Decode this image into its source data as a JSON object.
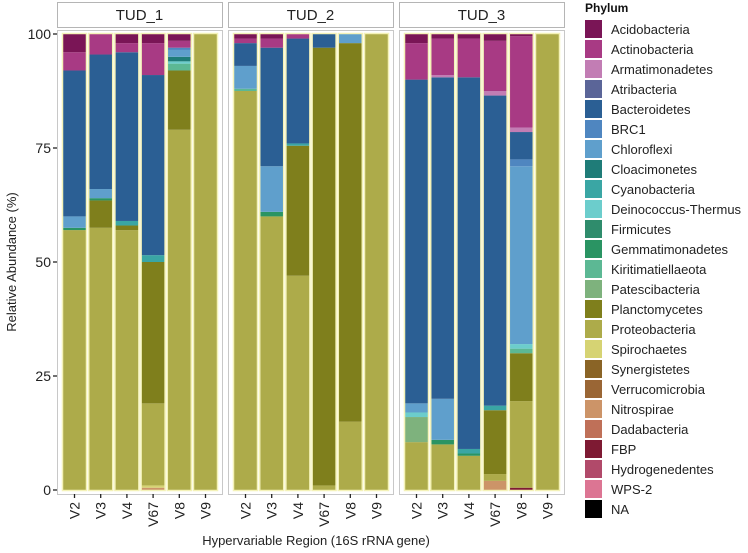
{
  "chart_data": {
    "type": "bar",
    "stacked": true,
    "title": "",
    "xlabel": "Hypervariable Region (16S rRNA gene)",
    "ylabel": "Relative Abundance (%)",
    "ylim": [
      0,
      100
    ],
    "yticks": [
      "0",
      "25",
      "50",
      "75",
      "100"
    ],
    "ytick_values": [
      0,
      25,
      50,
      75,
      100
    ],
    "grid": false,
    "legend_title": "Phylum",
    "legend_position": "right",
    "categories": [
      "V2",
      "V3",
      "V4",
      "V67",
      "V8",
      "V9"
    ],
    "phyla": [
      {
        "name": "Acidobacteria",
        "color": "#7a1556"
      },
      {
        "name": "Actinobacteria",
        "color": "#a83a84"
      },
      {
        "name": "Armatimonadetes",
        "color": "#c27db4"
      },
      {
        "name": "Atribacteria",
        "color": "#5b6598"
      },
      {
        "name": "Bacteroidetes",
        "color": "#2b5f94"
      },
      {
        "name": "BRC1",
        "color": "#4f86c0"
      },
      {
        "name": "Chloroflexi",
        "color": "#5f9fcc"
      },
      {
        "name": "Cloacimonetes",
        "color": "#1f7c78"
      },
      {
        "name": "Cyanobacteria",
        "color": "#3aa6a4"
      },
      {
        "name": "Deinococcus-Thermus",
        "color": "#6ccdcc"
      },
      {
        "name": "Firmicutes",
        "color": "#2f8c6c"
      },
      {
        "name": "Gemmatimonadetes",
        "color": "#2a9463"
      },
      {
        "name": "Kiritimatiellaeota",
        "color": "#5cb894"
      },
      {
        "name": "Patescibacteria",
        "color": "#7eb27d"
      },
      {
        "name": "Planctomycetes",
        "color": "#7f7f1c"
      },
      {
        "name": "Proteobacteria",
        "color": "#adab4a"
      },
      {
        "name": "Spirochaetes",
        "color": "#d6d373"
      },
      {
        "name": "Synergistetes",
        "color": "#8a6426"
      },
      {
        "name": "Verrucomicrobia",
        "color": "#9a6635"
      },
      {
        "name": "Nitrospirae",
        "color": "#cc9468"
      },
      {
        "name": "Dadabacteria",
        "color": "#bf7058"
      },
      {
        "name": "FBP",
        "color": "#7e1a33"
      },
      {
        "name": "Hydrogenedentes",
        "color": "#b14a6a"
      },
      {
        "name": "WPS-2",
        "color": "#dc7593"
      },
      {
        "name": "NA",
        "color": "#000000"
      }
    ],
    "facets": [
      {
        "label": "TUD_1",
        "bars": [
          {
            "category": "V2",
            "segments": [
              {
                "phylum": "Proteobacteria",
                "value": 57.0
              },
              {
                "phylum": "Gemmatimonadetes",
                "value": 0.5
              },
              {
                "phylum": "Chloroflexi",
                "value": 2.5
              },
              {
                "phylum": "Bacteroidetes",
                "value": 32.0
              },
              {
                "phylum": "Actinobacteria",
                "value": 4.0
              },
              {
                "phylum": "Acidobacteria",
                "value": 4.0
              }
            ]
          },
          {
            "category": "V3",
            "segments": [
              {
                "phylum": "Proteobacteria",
                "value": 57.5
              },
              {
                "phylum": "Planctomycetes",
                "value": 6.0
              },
              {
                "phylum": "Gemmatimonadetes",
                "value": 0.5
              },
              {
                "phylum": "Chloroflexi",
                "value": 2.0
              },
              {
                "phylum": "Bacteroidetes",
                "value": 29.5
              },
              {
                "phylum": "Actinobacteria",
                "value": 4.5
              }
            ]
          },
          {
            "category": "V4",
            "segments": [
              {
                "phylum": "Proteobacteria",
                "value": 57.0
              },
              {
                "phylum": "Planctomycetes",
                "value": 1.0
              },
              {
                "phylum": "Cyanobacteria",
                "value": 1.0
              },
              {
                "phylum": "Bacteroidetes",
                "value": 37.0
              },
              {
                "phylum": "Actinobacteria",
                "value": 2.0
              },
              {
                "phylum": "Acidobacteria",
                "value": 2.0
              }
            ]
          },
          {
            "category": "V67",
            "segments": [
              {
                "phylum": "Nitrospirae",
                "value": 0.5
              },
              {
                "phylum": "Spirochaetes",
                "value": 0.5
              },
              {
                "phylum": "Proteobacteria",
                "value": 18.0
              },
              {
                "phylum": "Planctomycetes",
                "value": 31.0
              },
              {
                "phylum": "Cyanobacteria",
                "value": 1.5
              },
              {
                "phylum": "Bacteroidetes",
                "value": 39.5
              },
              {
                "phylum": "Actinobacteria",
                "value": 7.0
              },
              {
                "phylum": "Acidobacteria",
                "value": 2.0
              }
            ]
          },
          {
            "category": "V8",
            "segments": [
              {
                "phylum": "Proteobacteria",
                "value": 79.0
              },
              {
                "phylum": "Planctomycetes",
                "value": 13.0
              },
              {
                "phylum": "Kiritimatiellaeota",
                "value": 1.5
              },
              {
                "phylum": "Deinococcus-Thermus",
                "value": 0.5
              },
              {
                "phylum": "Cloacimonetes",
                "value": 1.0
              },
              {
                "phylum": "Chloroflexi",
                "value": 1.5
              },
              {
                "phylum": "BRC1",
                "value": 0.5
              },
              {
                "phylum": "Actinobacteria",
                "value": 1.5
              },
              {
                "phylum": "Acidobacteria",
                "value": 1.5
              }
            ]
          },
          {
            "category": "V9",
            "segments": [
              {
                "phylum": "Proteobacteria",
                "value": 100.0
              }
            ]
          }
        ]
      },
      {
        "label": "TUD_2",
        "bars": [
          {
            "category": "V2",
            "segments": [
              {
                "phylum": "Proteobacteria",
                "value": 87.5
              },
              {
                "phylum": "Kiritimatiellaeota",
                "value": 0.5
              },
              {
                "phylum": "Chloroflexi",
                "value": 5.0
              },
              {
                "phylum": "Bacteroidetes",
                "value": 5.0
              },
              {
                "phylum": "Actinobacteria",
                "value": 1.0
              },
              {
                "phylum": "Acidobacteria",
                "value": 1.0
              }
            ]
          },
          {
            "category": "V3",
            "segments": [
              {
                "phylum": "Proteobacteria",
                "value": 60.0
              },
              {
                "phylum": "Gemmatimonadetes",
                "value": 1.0
              },
              {
                "phylum": "Chloroflexi",
                "value": 10.0
              },
              {
                "phylum": "Bacteroidetes",
                "value": 26.0
              },
              {
                "phylum": "Actinobacteria",
                "value": 2.0
              },
              {
                "phylum": "Acidobacteria",
                "value": 1.0
              }
            ]
          },
          {
            "category": "V4",
            "segments": [
              {
                "phylum": "Proteobacteria",
                "value": 47.0
              },
              {
                "phylum": "Planctomycetes",
                "value": 28.5
              },
              {
                "phylum": "Cyanobacteria",
                "value": 0.5
              },
              {
                "phylum": "Bacteroidetes",
                "value": 23.0
              },
              {
                "phylum": "Actinobacteria",
                "value": 1.0
              }
            ]
          },
          {
            "category": "V67",
            "segments": [
              {
                "phylum": "Proteobacteria",
                "value": 1.0
              },
              {
                "phylum": "Planctomycetes",
                "value": 96.0
              },
              {
                "phylum": "Bacteroidetes",
                "value": 3.0
              }
            ]
          },
          {
            "category": "V8",
            "segments": [
              {
                "phylum": "Proteobacteria",
                "value": 15.0
              },
              {
                "phylum": "Planctomycetes",
                "value": 83.0
              },
              {
                "phylum": "Chloroflexi",
                "value": 2.0
              }
            ]
          },
          {
            "category": "V9",
            "segments": [
              {
                "phylum": "Proteobacteria",
                "value": 100.0
              }
            ]
          }
        ]
      },
      {
        "label": "TUD_3",
        "bars": [
          {
            "category": "V2",
            "segments": [
              {
                "phylum": "Proteobacteria",
                "value": 10.5
              },
              {
                "phylum": "Patescibacteria",
                "value": 5.5
              },
              {
                "phylum": "Deinococcus-Thermus",
                "value": 1.0
              },
              {
                "phylum": "Chloroflexi",
                "value": 2.0
              },
              {
                "phylum": "Bacteroidetes",
                "value": 71.0
              },
              {
                "phylum": "Actinobacteria",
                "value": 8.0
              },
              {
                "phylum": "Acidobacteria",
                "value": 2.0
              }
            ]
          },
          {
            "category": "V3",
            "segments": [
              {
                "phylum": "Proteobacteria",
                "value": 10.0
              },
              {
                "phylum": "Gemmatimonadetes",
                "value": 1.0
              },
              {
                "phylum": "Chloroflexi",
                "value": 9.0
              },
              {
                "phylum": "Bacteroidetes",
                "value": 70.5
              },
              {
                "phylum": "Armatimonadetes",
                "value": 0.5
              },
              {
                "phylum": "Actinobacteria",
                "value": 8.0
              },
              {
                "phylum": "Acidobacteria",
                "value": 1.0
              }
            ]
          },
          {
            "category": "V4",
            "segments": [
              {
                "phylum": "Proteobacteria",
                "value": 7.5
              },
              {
                "phylum": "Gemmatimonadetes",
                "value": 0.5
              },
              {
                "phylum": "Cyanobacteria",
                "value": 1.0
              },
              {
                "phylum": "Bacteroidetes",
                "value": 81.5
              },
              {
                "phylum": "Actinobacteria",
                "value": 8.5
              },
              {
                "phylum": "Acidobacteria",
                "value": 1.0
              }
            ]
          },
          {
            "category": "V67",
            "segments": [
              {
                "phylum": "Nitrospirae",
                "value": 2.0
              },
              {
                "phylum": "Proteobacteria",
                "value": 1.5
              },
              {
                "phylum": "Planctomycetes",
                "value": 14.0
              },
              {
                "phylum": "Cyanobacteria",
                "value": 1.0
              },
              {
                "phylum": "Bacteroidetes",
                "value": 68.0
              },
              {
                "phylum": "Armatimonadetes",
                "value": 1.0
              },
              {
                "phylum": "Actinobacteria",
                "value": 11.0
              },
              {
                "phylum": "Acidobacteria",
                "value": 1.5
              }
            ]
          },
          {
            "category": "V8",
            "segments": [
              {
                "phylum": "FBP",
                "value": 0.5
              },
              {
                "phylum": "Proteobacteria",
                "value": 19.0
              },
              {
                "phylum": "Planctomycetes",
                "value": 10.5
              },
              {
                "phylum": "Kiritimatiellaeota",
                "value": 1.0
              },
              {
                "phylum": "Deinococcus-Thermus",
                "value": 1.0
              },
              {
                "phylum": "Chloroflexi",
                "value": 39.0
              },
              {
                "phylum": "BRC1",
                "value": 1.5
              },
              {
                "phylum": "Bacteroidetes",
                "value": 6.0
              },
              {
                "phylum": "Armatimonadetes",
                "value": 1.0
              },
              {
                "phylum": "Actinobacteria",
                "value": 20.0
              },
              {
                "phylum": "Acidobacteria",
                "value": 0.5
              }
            ]
          },
          {
            "category": "V9",
            "segments": [
              {
                "phylum": "Proteobacteria",
                "value": 100.0
              }
            ]
          }
        ]
      }
    ]
  }
}
